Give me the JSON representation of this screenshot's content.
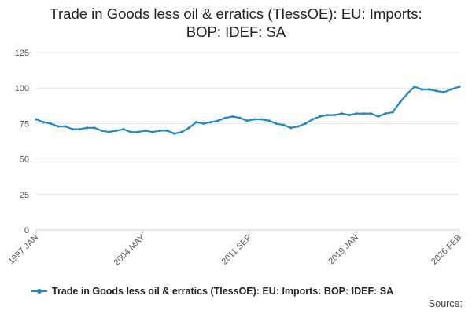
{
  "title_line1": "Trade in Goods less oil & erratics (TlessOE): EU: Imports:",
  "title_line2": "BOP: IDEF: SA",
  "source_label": "Source:",
  "colors": {
    "series": "#1f8ac6",
    "grid": "#e6e6e6",
    "axis": "#cccccc"
  },
  "chart_data": {
    "type": "line",
    "title": "Trade in Goods less oil & erratics (TlessOE): EU: Imports: BOP: IDEF: SA",
    "xlabel": "",
    "ylabel": "",
    "ylim": [
      0,
      125
    ],
    "yticks": [
      0,
      25,
      50,
      75,
      100,
      125
    ],
    "xlim": [
      "1997 JAN",
      "2026 FEB"
    ],
    "xtick_labels": [
      "1997 JAN",
      "2004 MAY",
      "2011 SEP",
      "2019 JAN",
      "2026 FEB"
    ],
    "grid": true,
    "legend": "bottom",
    "series": [
      {
        "name": "Trade in Goods less oil & erratics (TlessOE): EU: Imports: BOP: IDEF: SA",
        "x": [
          "1997-01",
          "1997-07",
          "1998-01",
          "1998-07",
          "1999-01",
          "1999-07",
          "2000-01",
          "2000-07",
          "2001-01",
          "2001-07",
          "2002-01",
          "2002-07",
          "2003-01",
          "2003-07",
          "2004-01",
          "2004-07",
          "2005-01",
          "2005-07",
          "2006-01",
          "2006-07",
          "2007-01",
          "2007-07",
          "2008-01",
          "2008-07",
          "2009-01",
          "2009-07",
          "2010-01",
          "2010-07",
          "2011-01",
          "2011-07",
          "2012-01",
          "2012-07",
          "2013-01",
          "2013-07",
          "2014-01",
          "2014-07",
          "2015-01",
          "2015-07",
          "2016-01",
          "2016-07",
          "2017-01",
          "2017-07",
          "2018-01",
          "2018-07",
          "2019-01",
          "2019-07",
          "2020-01",
          "2020-07",
          "2021-01",
          "2021-07",
          "2022-01",
          "2022-07",
          "2023-01",
          "2023-07",
          "2024-01",
          "2024-07",
          "2025-01",
          "2025-07",
          "2026-02"
        ],
        "values": [
          78,
          76,
          75,
          73,
          73,
          71,
          71,
          72,
          72,
          70,
          69,
          70,
          71,
          69,
          69,
          70,
          69,
          70,
          70,
          68,
          69,
          72,
          76,
          75,
          76,
          77,
          79,
          80,
          79,
          77,
          78,
          78,
          77,
          75,
          74,
          72,
          73,
          75,
          78,
          80,
          81,
          81,
          82,
          81,
          82,
          82,
          82,
          80,
          82,
          83,
          90,
          96,
          101,
          99,
          99,
          98,
          97,
          99,
          101
        ]
      }
    ]
  }
}
